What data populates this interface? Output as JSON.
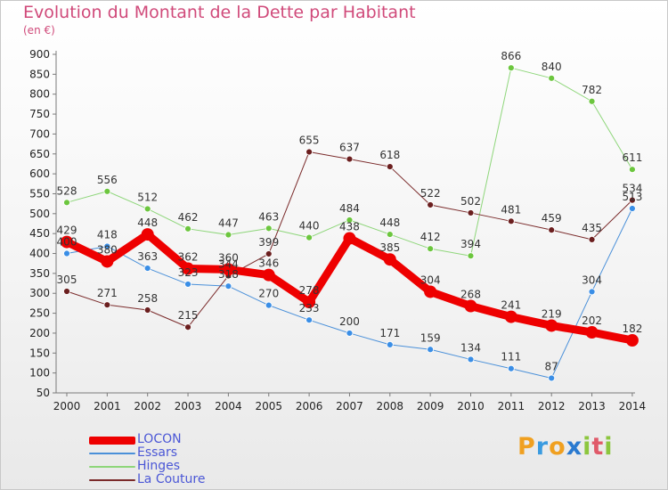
{
  "header": {
    "title": "Evolution du Montant de la Dette par Habitant",
    "unit": "(en €)"
  },
  "colors": {
    "title": "#d04a7a",
    "axis": "#7a7a7a",
    "grid": "#d6d6d6",
    "legend_text": "#4b57d6"
  },
  "logo": {
    "text": "Proxiti",
    "letters": [
      {
        "ch": "P",
        "color": "#f0a020"
      },
      {
        "ch": "r",
        "color": "#3a9be0"
      },
      {
        "ch": "o",
        "color": "#f0a020"
      },
      {
        "ch": "x",
        "color": "#2a7ad0"
      },
      {
        "ch": "i",
        "color": "#8cc63e"
      },
      {
        "ch": "t",
        "color": "#e05a6a"
      },
      {
        "ch": "i",
        "color": "#8cc63e"
      }
    ]
  },
  "chart_data": {
    "type": "line",
    "title": "Evolution du Montant de la Dette par Habitant",
    "subtitle": "(en €)",
    "x": [
      "2000",
      "2001",
      "2002",
      "2003",
      "2004",
      "2005",
      "2006",
      "2007",
      "2008",
      "2009",
      "2010",
      "2011",
      "2012",
      "2013",
      "2014"
    ],
    "ylim": [
      50,
      900
    ],
    "yticks": [
      50,
      100,
      150,
      200,
      250,
      300,
      350,
      400,
      450,
      500,
      550,
      600,
      650,
      700,
      750,
      800,
      850,
      900
    ],
    "grid": false,
    "legend_position": "bottom-left",
    "series": [
      {
        "name": "LOCON",
        "color": "#ee0000",
        "width": 9,
        "marker_radius": 7,
        "values": [
          429,
          380,
          448,
          362,
          360,
          346,
          278,
          438,
          385,
          304,
          268,
          241,
          219,
          202,
          182
        ],
        "labels": [
          "429",
          "380",
          "448",
          "362",
          "360",
          "346",
          "278",
          "438",
          "385",
          "304",
          "268",
          "241",
          "219",
          "202",
          "182"
        ]
      },
      {
        "name": "Essars",
        "color": "#4a90d9",
        "marker_color": "#3a8ee6",
        "width": 1,
        "marker_radius": 3.5,
        "values": [
          400,
          418,
          363,
          323,
          318,
          270,
          233,
          200,
          171,
          159,
          134,
          111,
          87,
          304,
          513
        ],
        "labels": [
          "400",
          "418",
          "363",
          "323",
          "318",
          "270",
          "233",
          "200",
          "171",
          "159",
          "134",
          "111",
          "87",
          "304",
          "513"
        ]
      },
      {
        "name": "Hinges",
        "color": "#8ed67a",
        "marker_color": "#6cc63e",
        "width": 1,
        "marker_radius": 3.5,
        "values": [
          528,
          556,
          512,
          462,
          447,
          463,
          440,
          484,
          448,
          412,
          394,
          null,
          null,
          null,
          null
        ],
        "continuation": {
          "x": [
            "2010",
            "2011",
            "2012",
            "2013",
            "2014"
          ],
          "values": [
            394,
            866,
            840,
            782,
            611
          ]
        },
        "labels": [
          "528",
          "556",
          "512",
          "462",
          "447",
          "463",
          "440",
          "484",
          "448",
          "412",
          "394",
          "866",
          "840",
          "782",
          "611"
        ]
      },
      {
        "name": "La Couture",
        "color": "#7a2a2a",
        "marker_color": "#6b1f1f",
        "width": 1,
        "marker_radius": 3.5,
        "values": [
          305,
          271,
          258,
          215,
          344,
          399,
          655,
          637,
          618,
          522,
          502,
          481,
          459,
          435,
          534
        ],
        "labels": [
          "305",
          "271",
          "258",
          "215",
          "344",
          "399",
          "655",
          "637",
          "618",
          "522",
          "502",
          "481",
          "459",
          "435",
          "534"
        ]
      }
    ]
  }
}
